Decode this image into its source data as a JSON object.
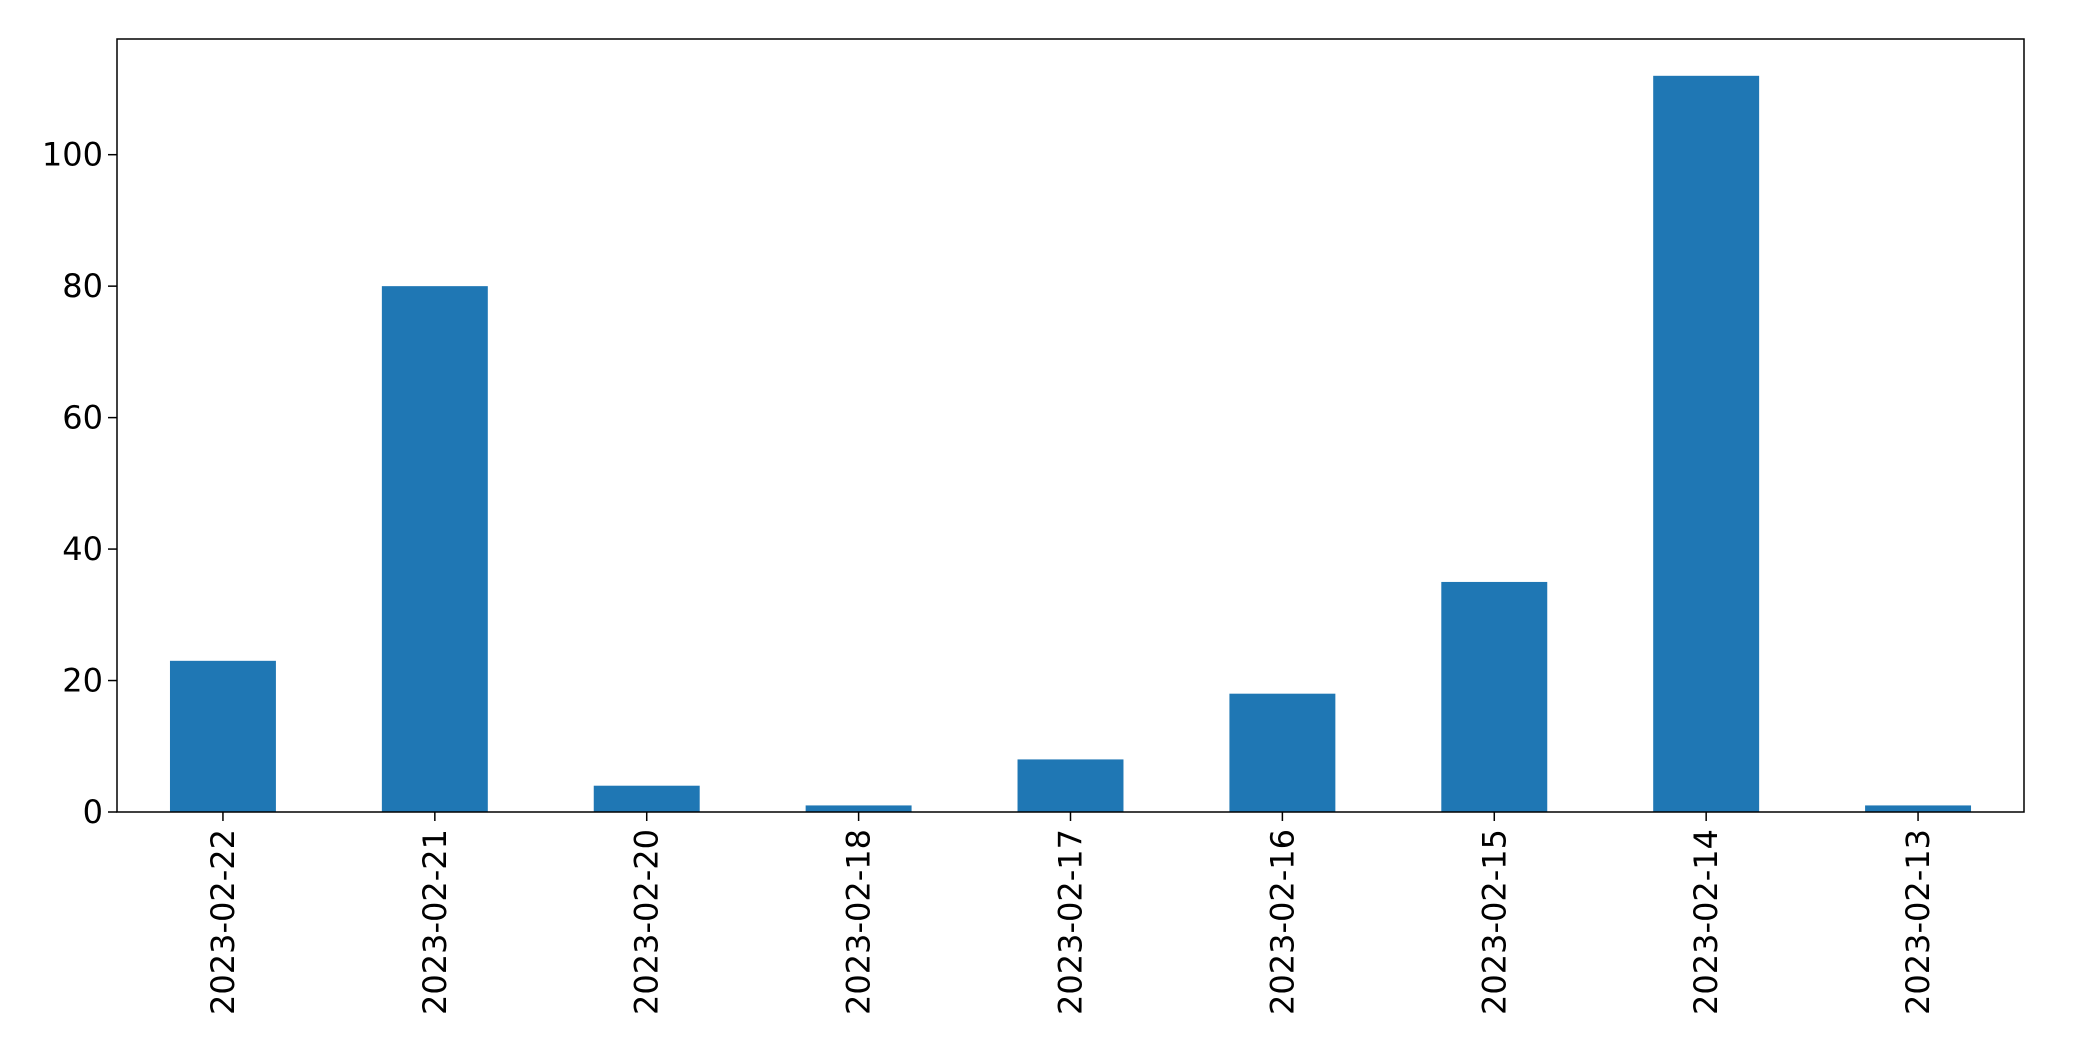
{
  "chart_data": {
    "type": "bar",
    "categories": [
      "2023-02-22",
      "2023-02-21",
      "2023-02-20",
      "2023-02-18",
      "2023-02-17",
      "2023-02-16",
      "2023-02-15",
      "2023-02-14",
      "2023-02-13"
    ],
    "values": [
      23,
      80,
      4,
      1,
      8,
      18,
      35,
      112,
      1
    ],
    "title": "",
    "xlabel": "",
    "ylabel": "",
    "ylim": [
      0,
      117.6
    ],
    "yticks": [
      0,
      20,
      40,
      60,
      80,
      100
    ],
    "grid": false,
    "bar_color": "#1f77b4"
  }
}
